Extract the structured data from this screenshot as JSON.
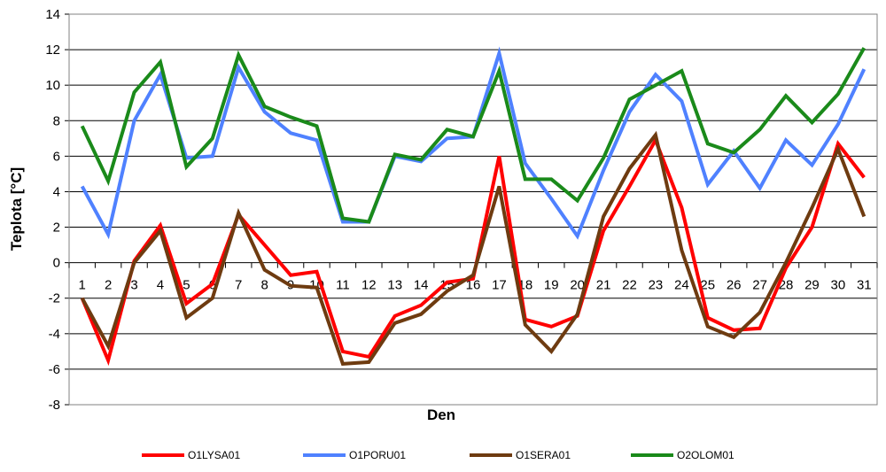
{
  "chart_data": {
    "type": "line",
    "title": "",
    "xlabel": "Den",
    "ylabel": "Teplota [°C]",
    "ylim": [
      -8,
      14
    ],
    "y_ticks": [
      14,
      12,
      10,
      8,
      6,
      4,
      2,
      0,
      -2,
      -4,
      -6,
      -8
    ],
    "grid": "horizontal",
    "legend_position": "bottom",
    "categories": [
      "1",
      "2",
      "3",
      "4",
      "5",
      "6",
      "7",
      "8",
      "9",
      "10",
      "11",
      "12",
      "13",
      "14",
      "15",
      "16",
      "17",
      "18",
      "19",
      "20",
      "21",
      "22",
      "23",
      "24",
      "25",
      "26",
      "27",
      "28",
      "29",
      "30",
      "31"
    ],
    "series": [
      {
        "name": "O1LYSA01",
        "color": "#ff0000",
        "values": [
          -2.0,
          -5.5,
          0.1,
          2.1,
          -2.3,
          -1.2,
          2.7,
          1.0,
          -0.7,
          -0.5,
          -5.0,
          -5.3,
          -3.0,
          -2.4,
          -1.1,
          -0.9,
          6.0,
          -3.2,
          -3.6,
          -3.0,
          1.8,
          4.3,
          6.9,
          3.1,
          -3.1,
          -3.8,
          -3.7,
          -0.3,
          2.0,
          6.7,
          4.8
        ]
      },
      {
        "name": "O1PORU01",
        "color": "#4f81ff",
        "values": [
          4.3,
          1.6,
          8.0,
          10.6,
          5.9,
          6.0,
          11.0,
          8.5,
          7.3,
          6.9,
          2.3,
          2.3,
          6.0,
          5.7,
          7.0,
          7.1,
          11.8,
          5.6,
          3.6,
          1.5,
          5.2,
          8.5,
          10.6,
          9.1,
          4.4,
          6.3,
          4.2,
          6.9,
          5.5,
          7.8,
          10.9
        ]
      },
      {
        "name": "O1SERA01",
        "color": "#6e3b10",
        "values": [
          -2.0,
          -4.7,
          0.0,
          1.8,
          -3.1,
          -2.0,
          2.8,
          -0.4,
          -1.3,
          -1.4,
          -5.7,
          -5.6,
          -3.4,
          -2.9,
          -1.6,
          -0.7,
          4.3,
          -3.5,
          -5.0,
          -2.9,
          2.6,
          5.3,
          7.2,
          0.7,
          -3.6,
          -4.2,
          -2.8,
          0.0,
          3.1,
          6.4,
          2.6
        ]
      },
      {
        "name": "O2OLOM01",
        "color": "#1a8a1a",
        "values": [
          7.7,
          4.6,
          9.6,
          11.3,
          5.4,
          7.0,
          11.7,
          8.8,
          8.2,
          7.7,
          2.5,
          2.3,
          6.1,
          5.8,
          7.5,
          7.1,
          10.8,
          4.7,
          4.7,
          3.5,
          5.9,
          9.2,
          10.0,
          10.8,
          6.7,
          6.2,
          7.5,
          9.4,
          7.9,
          9.5,
          12.1
        ]
      }
    ]
  }
}
